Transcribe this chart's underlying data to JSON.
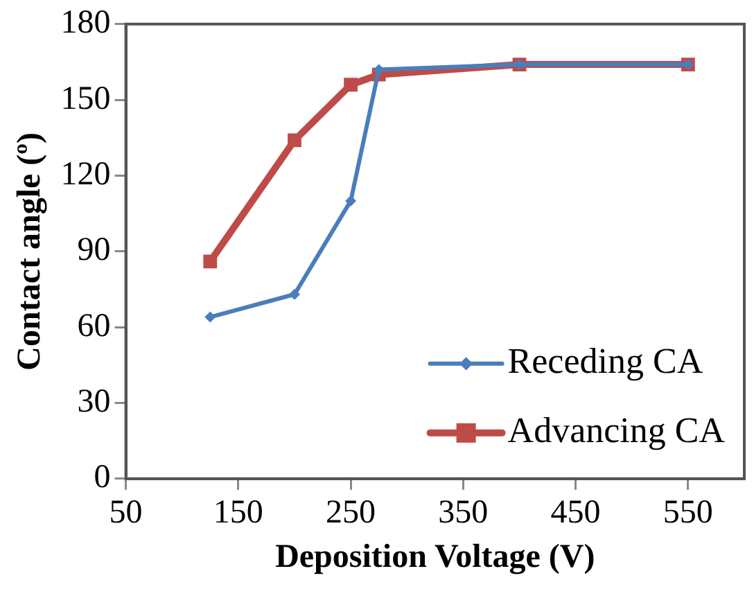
{
  "chart_data": {
    "type": "line",
    "xlabel": "Deposition Voltage (V)",
    "ylabel": "Contact angle (º)",
    "x": [
      125,
      200,
      250,
      275,
      400,
      550
    ],
    "series": [
      {
        "name": "Receding CA",
        "color": "#4a7ebb",
        "marker": "diamond",
        "values": [
          64,
          73,
          110,
          162,
          164,
          164
        ]
      },
      {
        "name": "Advancing CA",
        "color": "#be4b48",
        "marker": "square",
        "values": [
          86,
          134,
          156,
          160,
          164,
          164
        ]
      }
    ],
    "xlim": [
      50,
      600
    ],
    "xticks": [
      50,
      150,
      250,
      350,
      450,
      550
    ],
    "ylim": [
      0,
      180
    ],
    "yticks": [
      0,
      30,
      60,
      90,
      120,
      150,
      180
    ],
    "grid": false,
    "legend": "bottom right"
  }
}
